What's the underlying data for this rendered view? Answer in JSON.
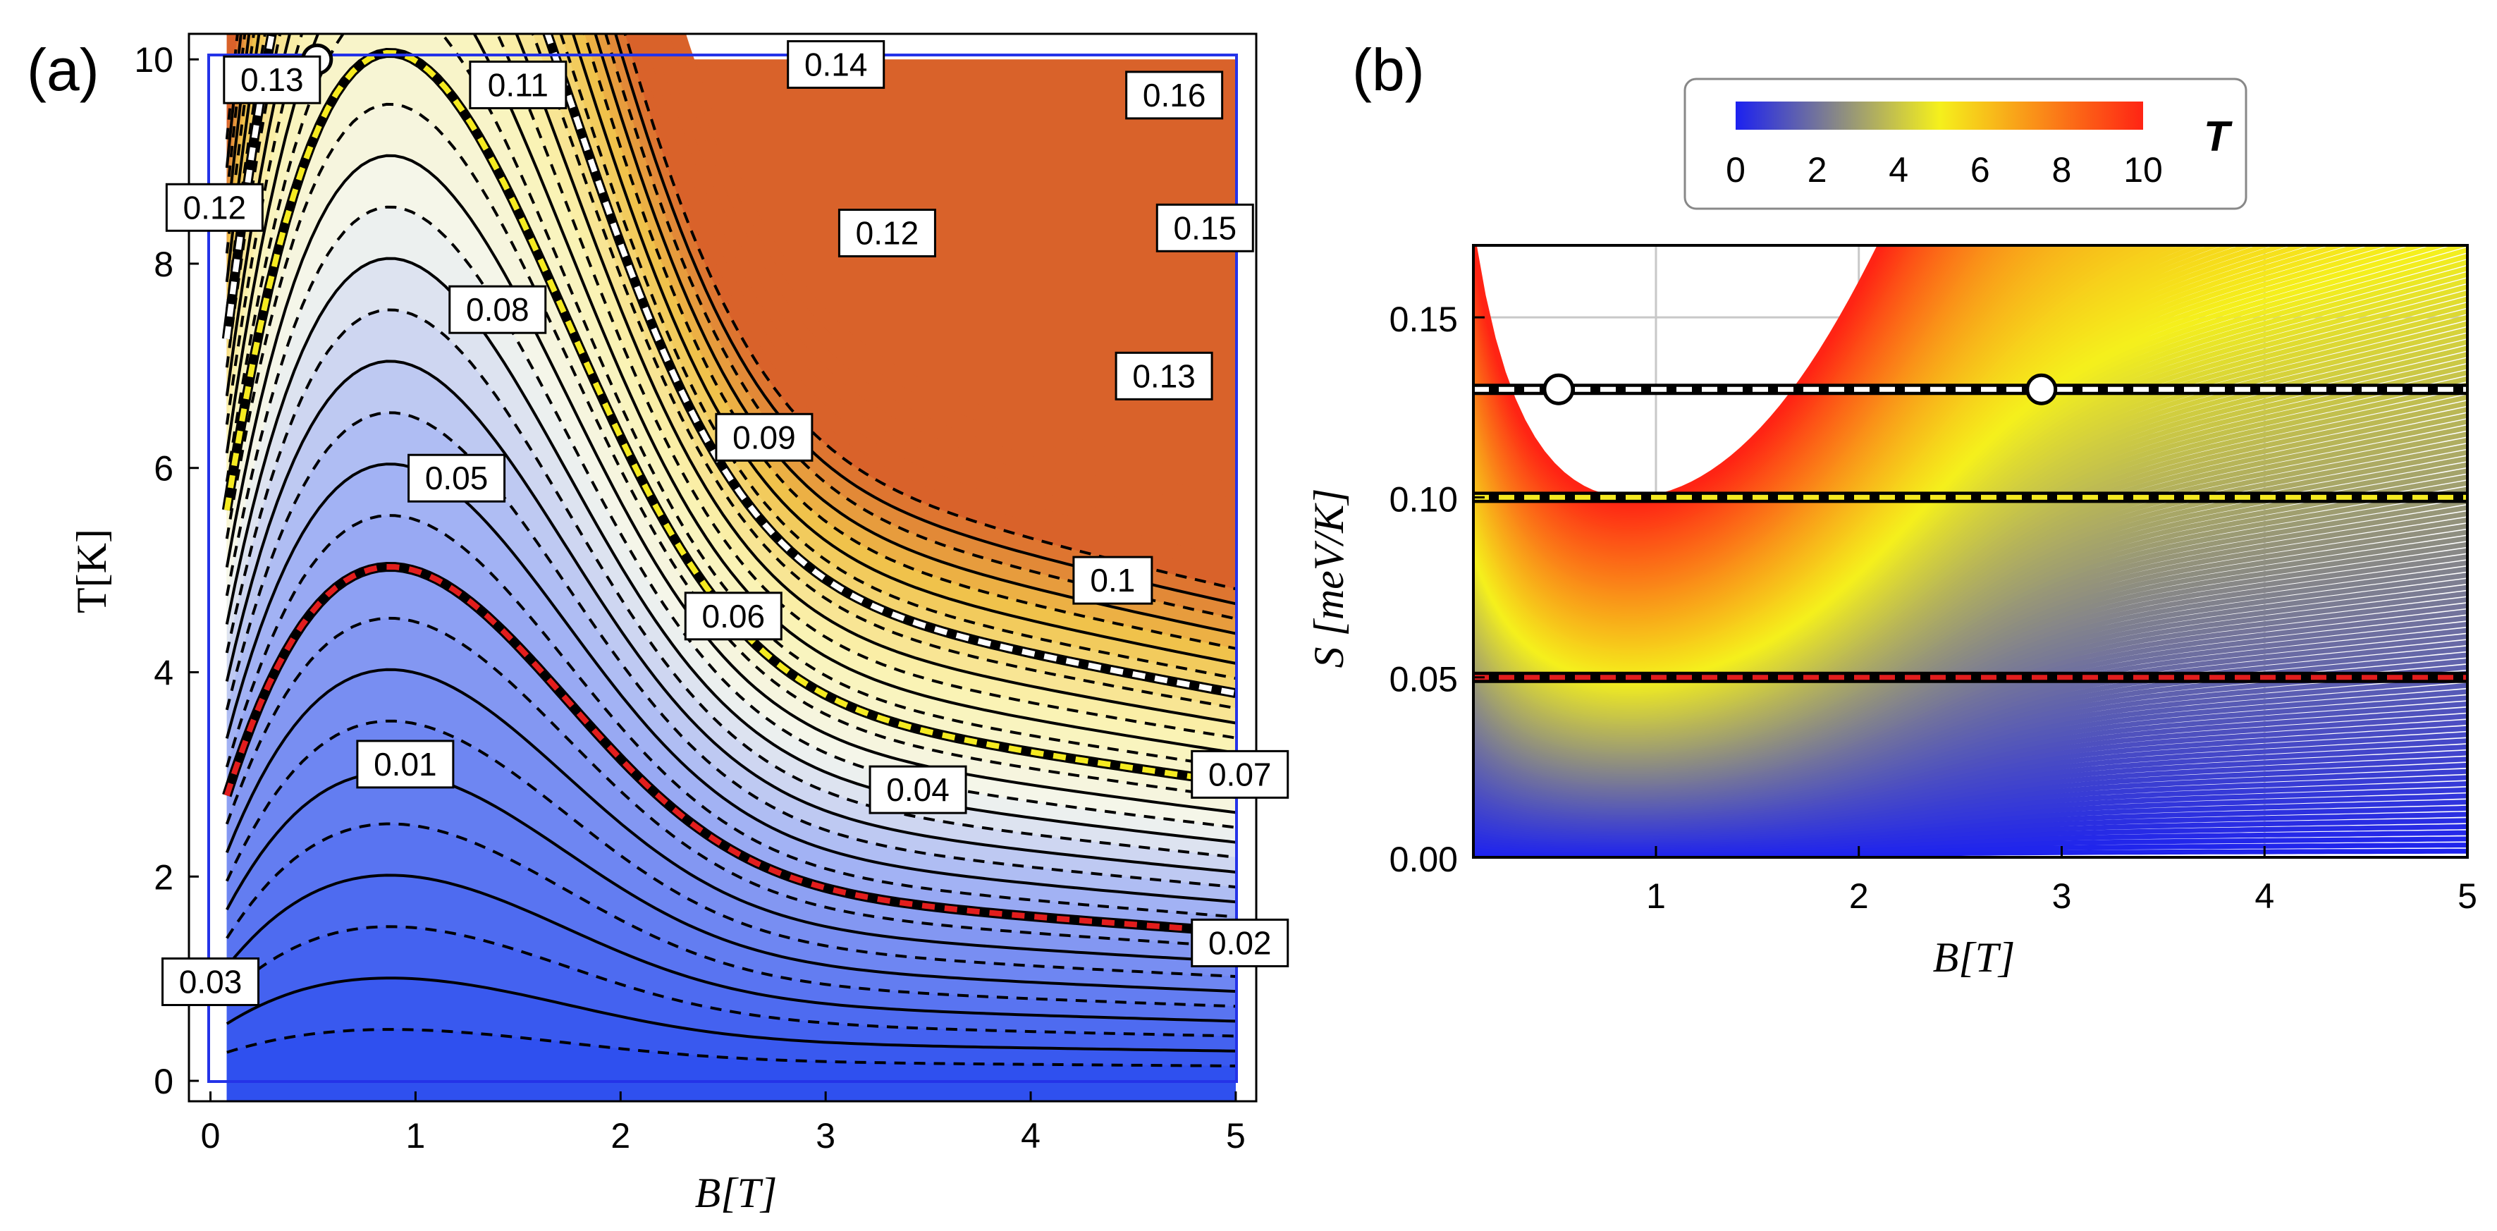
{
  "panels": {
    "a": "(a)",
    "b": "(b)"
  },
  "chart_data": [
    {
      "type": "contour",
      "panel": "(a)",
      "xlabel": "B[T]",
      "ylabel": "T[K]",
      "xlim": [
        0,
        5
      ],
      "ylim": [
        0,
        10
      ],
      "x_ticks": [
        0,
        1,
        2,
        3,
        4,
        5
      ],
      "y_ticks": [
        0,
        2,
        4,
        6,
        8,
        10
      ],
      "contour_levels": [
        "0.01",
        "0.02",
        "0.03",
        "0.04",
        "0.05",
        "0.06",
        "0.07",
        "0.08",
        "0.09",
        "0.1",
        "0.11",
        "0.12",
        "0.13",
        "0.14",
        "0.15",
        "0.16"
      ],
      "highlighted_isentropes": [
        {
          "level": 0.05,
          "color": "#e21d1d"
        },
        {
          "level": 0.1,
          "color": "#f5ea20"
        },
        {
          "level": 0.13,
          "color": "#ffffff"
        }
      ],
      "markers": [
        {
          "x": 0.52,
          "y": 10
        },
        {
          "x": 2.9,
          "y": 10
        }
      ],
      "colors": {
        "low": "#2d4ff0",
        "mid": "#f6f7ea",
        "high": "#d9622a"
      }
    },
    {
      "type": "line",
      "panel": "(b)",
      "xlabel": "B[T]",
      "ylabel": "S [meV/K]",
      "xlim": [
        0.1,
        5
      ],
      "ylim": [
        0,
        0.17
      ],
      "x_ticks": [
        1,
        2,
        3,
        4,
        5
      ],
      "y_ticks": [
        "0.00",
        "0.05",
        "0.10",
        "0.15"
      ],
      "grid": true,
      "colorbar": {
        "label": "T",
        "ticks": [
          0,
          2,
          4,
          6,
          8,
          10
        ],
        "colors": [
          "#1c21f0",
          "#f5f01c",
          "#ff2414"
        ]
      },
      "isentropes": [
        {
          "S": 0.05,
          "color": "#e21d1d"
        },
        {
          "S": 0.1,
          "color": "#f5ea20"
        },
        {
          "S": 0.13,
          "color": "#ffffff"
        }
      ],
      "markers": [
        {
          "x": 0.52,
          "y": 0.13
        },
        {
          "x": 2.9,
          "y": 0.13
        }
      ]
    }
  ]
}
